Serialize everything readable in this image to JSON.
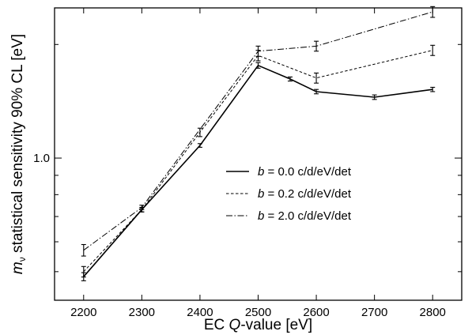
{
  "chart_data": {
    "type": "line",
    "title": "",
    "xlabel": {
      "prefix": "EC ",
      "italic": "Q",
      "suffix": "-value [eV]"
    },
    "ylabel": {
      "italic": "m",
      "subscript": "ν",
      "suffix": " statistical sensitivity 90% CL [eV]"
    },
    "xlim": [
      2150,
      2850
    ],
    "ylim": [
      0.42,
      2.5
    ],
    "yscale": "log",
    "grid": false,
    "legend_position": "center-right",
    "x_ticks": [
      2200,
      2300,
      2400,
      2500,
      2600,
      2700,
      2800
    ],
    "x_tick_labels": [
      "2200",
      "2300",
      "2400",
      "2500",
      "2600",
      "2700",
      "2800"
    ],
    "y_tick_labels": [
      {
        "value": 1.0,
        "label": "1.0"
      }
    ],
    "y_minor_ticks": [
      0.5,
      0.6,
      0.7,
      0.8,
      0.9,
      2.0
    ],
    "series": [
      {
        "name": {
          "italic": "b",
          "rest": " = 0.0 c/d/eV/det"
        },
        "style": "solid",
        "x": [
          2200,
          2300,
          2400,
          2500,
          2555,
          2600,
          2700,
          2800
        ],
        "y": [
          0.485,
          0.73,
          1.08,
          1.76,
          1.62,
          1.5,
          1.45,
          1.52
        ],
        "err": [
          0.012,
          0.01,
          0.012,
          0.03,
          0.02,
          0.02,
          0.02,
          0.02
        ]
      },
      {
        "name": {
          "italic": "b",
          "rest": " = 0.2 c/d/eV/det"
        },
        "style": "dashed",
        "x": [
          2200,
          2300,
          2400,
          2500,
          2600,
          2800
        ],
        "y": [
          0.5,
          0.73,
          1.17,
          1.87,
          1.63,
          1.93
        ],
        "err": [
          0.016,
          0.01,
          0.03,
          0.06,
          0.05,
          0.06
        ]
      },
      {
        "name": {
          "italic": "b",
          "rest": " = 2.0 c/d/eV/det"
        },
        "style": "dashdot",
        "x": [
          2200,
          2300,
          2500,
          2600,
          2800
        ],
        "y": [
          0.57,
          0.74,
          1.92,
          1.98,
          2.44
        ],
        "err": [
          0.02,
          0.01,
          0.06,
          0.06,
          0.08
        ]
      }
    ]
  }
}
